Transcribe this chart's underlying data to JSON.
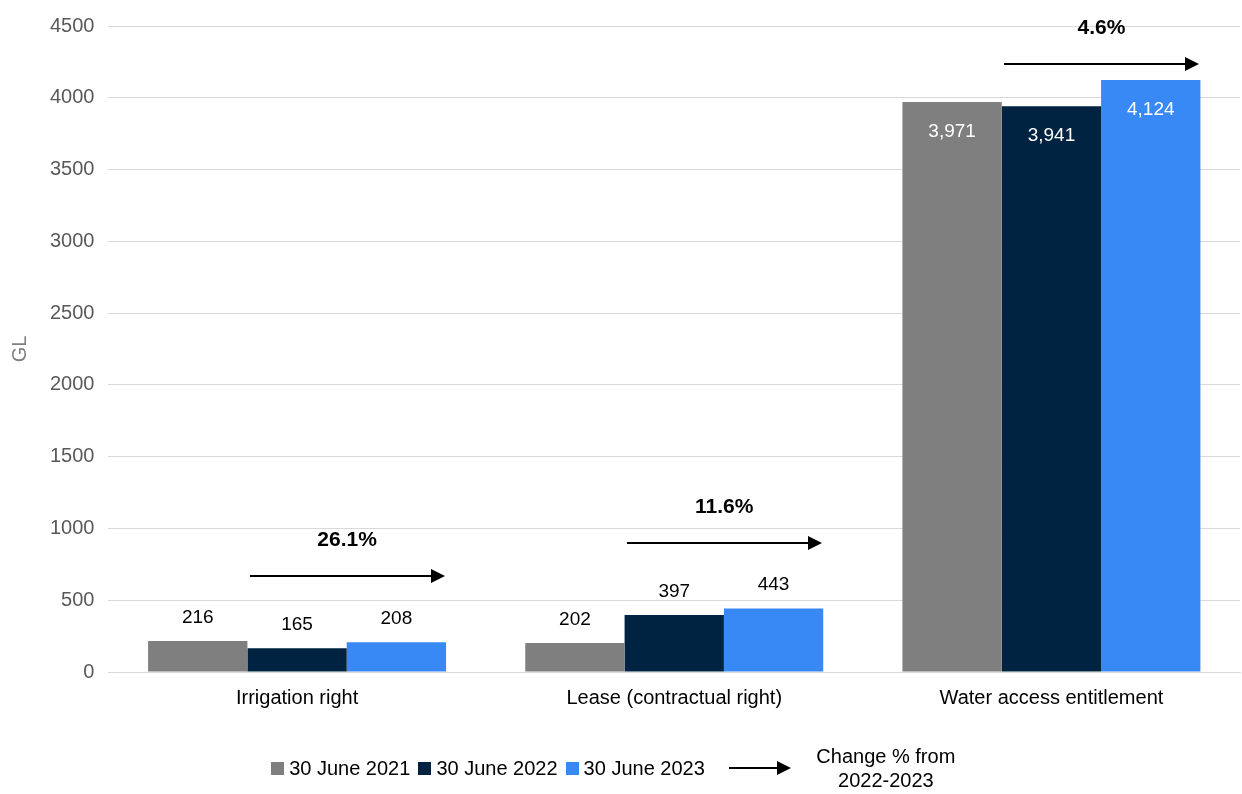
{
  "chart_data": {
    "type": "bar",
    "ylabel": "GL",
    "categories": [
      "Irrigation right",
      "Lease (contractual right)",
      "Water access entitlement"
    ],
    "series": [
      {
        "name": "30 June 2021",
        "color": "#7f7f7f",
        "values": [
          216,
          202,
          3971
        ],
        "value_labels": [
          "216",
          "202",
          "3,971"
        ]
      },
      {
        "name": "30 June 2022",
        "color": "#002341",
        "values": [
          165,
          397,
          3941
        ],
        "value_labels": [
          "165",
          "397",
          "3,941"
        ]
      },
      {
        "name": "30 June 2023",
        "color": "#3888f5",
        "values": [
          208,
          443,
          4124
        ],
        "value_labels": [
          "208",
          "443",
          "4,124"
        ]
      }
    ],
    "ylim": [
      0,
      4500
    ],
    "yticks": [
      0,
      500,
      1000,
      1500,
      2000,
      2500,
      3000,
      3500,
      4000,
      4500
    ],
    "grid": "y",
    "legend": "bottom",
    "annotations": [
      "26.1%",
      "11.6%",
      "4.6%",
      "Change % from 2022-2023"
    ]
  }
}
